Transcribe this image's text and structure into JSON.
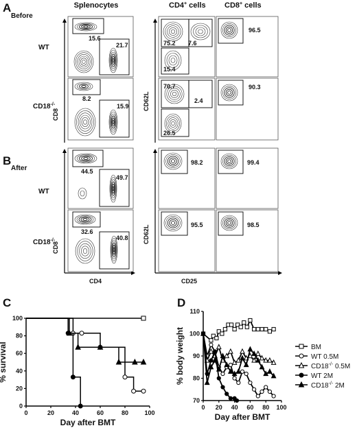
{
  "panel_letters": [
    "A",
    "B",
    "C",
    "D"
  ],
  "headers": {
    "splenocytes": "Splenocytes",
    "cd4_cells": "CD4",
    "cd8_cells": "CD8",
    "cells_word": "cells",
    "plus": "+"
  },
  "conditions": {
    "before": "Before",
    "after": "After"
  },
  "rows": {
    "wt": "WT",
    "cd18": "CD18",
    "cd18_sup": "-/-"
  },
  "flow_axes": {
    "cd8": "CD8",
    "cd4": "CD4",
    "cd62l": "CD62L",
    "cd25": "CD25"
  },
  "gates": {
    "before_wt_splen": [
      "15.6",
      "21.7"
    ],
    "before_cd18_splen": [
      "8.2",
      "15.9"
    ],
    "before_wt_cd4": [
      "75.2",
      "7.6",
      "15.4"
    ],
    "before_cd18_cd4": [
      "70.7",
      "2.4",
      "26.5"
    ],
    "before_wt_cd8": [
      "96.5"
    ],
    "before_cd18_cd8": [
      "90.3"
    ],
    "after_wt_splen": [
      "44.5",
      "49.7"
    ],
    "after_cd18_splen": [
      "32.6",
      "40.8"
    ],
    "after_wt_cd4": [
      "98.2"
    ],
    "after_cd18_cd4": [
      "95.5"
    ],
    "after_wt_cd8": [
      "99.4"
    ],
    "after_cd18_cd8": [
      "98.5"
    ]
  },
  "chart_data": [
    {
      "type": "line",
      "panel": "C",
      "title": "",
      "xlabel": "Day after BMT",
      "ylabel": "% survival",
      "xlim": [
        0,
        100
      ],
      "ylim": [
        0,
        100
      ],
      "xticks": [
        0,
        20,
        40,
        60,
        80,
        100
      ],
      "yticks": [
        0,
        20,
        40,
        60,
        80,
        100
      ],
      "step": true,
      "series": [
        {
          "marker": "square-open",
          "x": [
            0,
            95
          ],
          "y": [
            100,
            100
          ]
        },
        {
          "marker": "circle-open",
          "x": [
            0,
            38,
            45,
            60,
            80,
            87,
            95
          ],
          "y": [
            100,
            83,
            83,
            67,
            33,
            17,
            17
          ]
        },
        {
          "marker": "triangle-filled",
          "x": [
            0,
            35,
            42,
            60,
            75,
            88,
            95
          ],
          "y": [
            100,
            83,
            67,
            67,
            50,
            50,
            50
          ]
        },
        {
          "marker": "circle-filled",
          "x": [
            0,
            34,
            38,
            44
          ],
          "y": [
            100,
            83,
            33,
            0
          ]
        }
      ]
    },
    {
      "type": "line",
      "panel": "D",
      "title": "",
      "xlabel": "Day after BMT",
      "ylabel": "% body weight",
      "xlim": [
        0,
        100
      ],
      "ylim": [
        70,
        110
      ],
      "xticks": [
        0,
        20,
        40,
        60,
        80,
        100
      ],
      "yticks": [
        70,
        80,
        90,
        100,
        110
      ],
      "legend_position": "right",
      "series": [
        {
          "name": "BM",
          "marker": "square-open",
          "x": [
            0,
            10,
            13,
            17,
            20,
            24,
            28,
            32,
            36,
            40,
            44,
            48,
            52,
            56,
            60,
            65,
            70,
            75,
            80,
            85,
            90
          ],
          "y": [
            100,
            97,
            99,
            98,
            101,
            100,
            102,
            104,
            104,
            102,
            104,
            103,
            105,
            103,
            106,
            102,
            102,
            102,
            102,
            101,
            102
          ]
        },
        {
          "name": "WT 0.5M",
          "marker": "circle-open",
          "x": [
            0,
            5,
            10,
            15,
            20,
            25,
            30,
            35,
            40,
            45,
            50,
            55,
            60,
            65,
            70,
            75,
            80,
            85,
            90
          ],
          "y": [
            100,
            90,
            95,
            92,
            85,
            82,
            85,
            86,
            80,
            78,
            83,
            82,
            78,
            75,
            72,
            74,
            76,
            74,
            72
          ]
        },
        {
          "name": "CD18",
          "name_sup": "-/-",
          "name_suffix": " 0.5M",
          "marker": "triangle-open",
          "x": [
            0,
            5,
            10,
            15,
            20,
            25,
            30,
            35,
            40,
            45,
            50,
            55,
            60,
            65,
            70,
            75,
            80,
            85,
            90
          ],
          "y": [
            100,
            88,
            92,
            90,
            94,
            88,
            90,
            92,
            87,
            88,
            92,
            89,
            90,
            88,
            91,
            89,
            88,
            88,
            87
          ]
        },
        {
          "name": "WT 2M",
          "marker": "circle-filled",
          "x": [
            0,
            5,
            10,
            15,
            20,
            25,
            30,
            35,
            40,
            43
          ],
          "y": [
            100,
            82,
            88,
            92,
            80,
            76,
            73,
            71,
            71,
            70
          ]
        },
        {
          "name": "CD18",
          "name_sup": "-/-",
          "name_suffix": " 2M",
          "marker": "triangle-filled",
          "x": [
            0,
            5,
            10,
            15,
            20,
            25,
            30,
            35,
            40,
            45,
            50,
            55,
            60,
            65,
            70,
            75,
            80,
            85,
            90
          ],
          "y": [
            100,
            78,
            85,
            88,
            84,
            90,
            86,
            83,
            82,
            83,
            89,
            86,
            93,
            91,
            88,
            85,
            82,
            83,
            81
          ]
        }
      ]
    }
  ]
}
